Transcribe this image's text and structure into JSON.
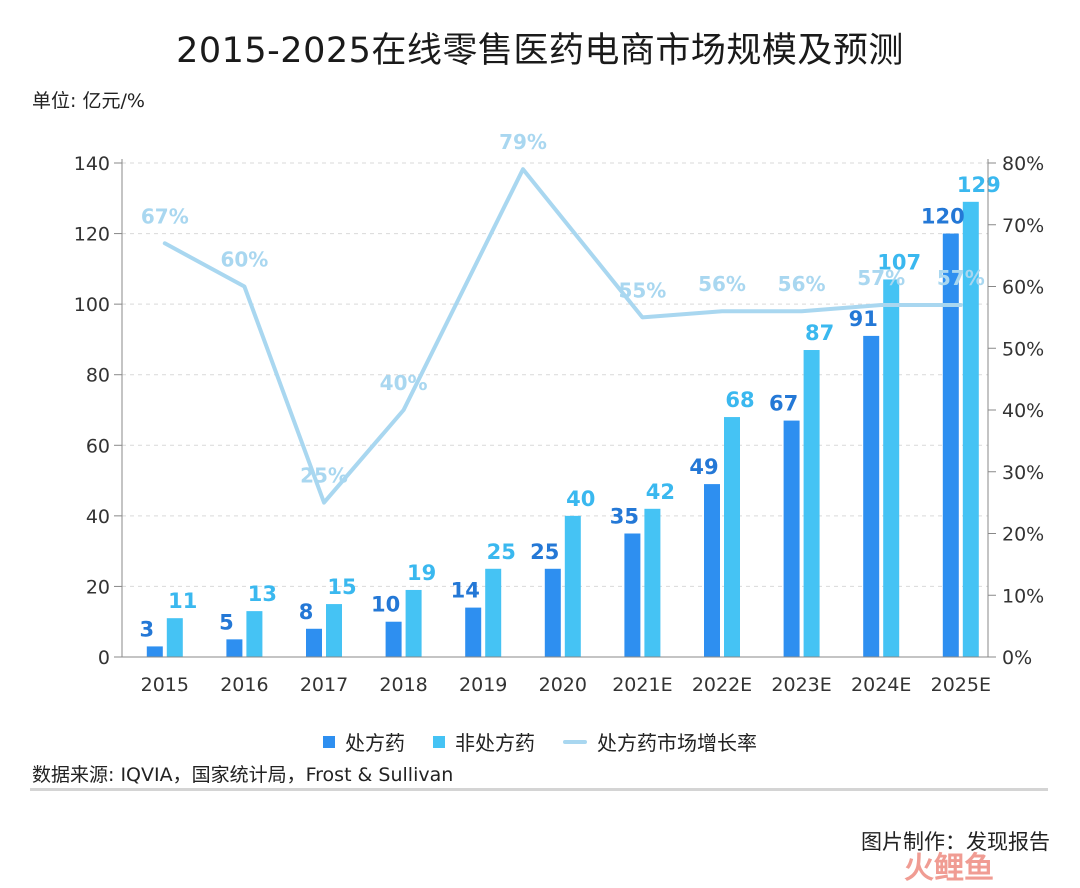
{
  "header": {
    "title": "2015-2025在线零售医药电商市场规模及预测",
    "unit": "单位: 亿元/%"
  },
  "chart_data": {
    "type": "bar",
    "categories": [
      "2015",
      "2016",
      "2017",
      "2018",
      "2019",
      "2020",
      "2021E",
      "2022E",
      "2023E",
      "2024E",
      "2025E"
    ],
    "series": [
      {
        "name": "处方药",
        "type": "bar",
        "axis": "left",
        "color": "#2e8ff0",
        "label_color": "#2478d6",
        "values": [
          3,
          5,
          8,
          10,
          14,
          25,
          35,
          49,
          67,
          91,
          120
        ]
      },
      {
        "name": "非处方药",
        "type": "bar",
        "axis": "left",
        "color": "#45c3f4",
        "label_color": "#3ab8ef",
        "values": [
          11,
          13,
          15,
          19,
          25,
          40,
          42,
          68,
          87,
          107,
          129
        ]
      },
      {
        "name": "处方药市场增长率",
        "type": "line",
        "axis": "right",
        "color": "#a9d7f0",
        "values": [
          67,
          60,
          25,
          40,
          79,
          55,
          56,
          56,
          57,
          57
        ],
        "x": [
          "2015",
          "2016",
          "2017",
          "2018",
          "2019-2020",
          "2021E",
          "2022E",
          "2023E",
          "2024E",
          "2025E"
        ]
      }
    ],
    "y_left": {
      "ylim": [
        0,
        140
      ],
      "ticks": [
        "0",
        "20",
        "40",
        "60",
        "80",
        "100",
        "120",
        "140"
      ]
    },
    "y_right": {
      "ylim": [
        0,
        80
      ],
      "ticks": [
        "0%",
        "10%",
        "20%",
        "30%",
        "40%",
        "50%",
        "60%",
        "70%",
        "80%"
      ]
    },
    "grid": true,
    "grid_style": "dashed",
    "legend_position": "bottom-center"
  },
  "legend": [
    {
      "label": "处方药",
      "color": "#2e8ff0",
      "kind": "square"
    },
    {
      "label": "非处方药",
      "color": "#45c3f4",
      "kind": "square"
    },
    {
      "label": "处方药市场增长率",
      "color": "#a9d7f0",
      "kind": "line"
    }
  ],
  "footer": {
    "source": "数据来源: IQVIA，国家统计局，Frost & Sullivan",
    "credit": "图片制作：发现报告",
    "watermark_text": "火鲤鱼"
  }
}
